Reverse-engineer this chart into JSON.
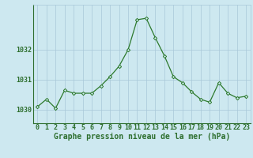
{
  "hours": [
    0,
    1,
    2,
    3,
    4,
    5,
    6,
    7,
    8,
    9,
    10,
    11,
    12,
    13,
    14,
    15,
    16,
    17,
    18,
    19,
    20,
    21,
    22,
    23
  ],
  "pressure": [
    1030.1,
    1030.35,
    1030.05,
    1030.65,
    1030.55,
    1030.55,
    1030.55,
    1030.8,
    1031.1,
    1031.45,
    1032.0,
    1033.0,
    1033.05,
    1032.4,
    1031.8,
    1031.1,
    1030.9,
    1030.6,
    1030.35,
    1030.25,
    1030.9,
    1030.55,
    1030.4,
    1030.45
  ],
  "line_color": "#2d7a2d",
  "marker": "D",
  "marker_size": 2.2,
  "bg_color": "#cde8f0",
  "grid_color": "#a8c8d8",
  "axis_color": "#2d6e2d",
  "xlabel": "Graphe pression niveau de la mer (hPa)",
  "xlabel_fontsize": 7,
  "tick_fontsize": 6,
  "ytick_labels": [
    "1030",
    "1031",
    "1032"
  ],
  "ytick_values": [
    1030,
    1031,
    1032
  ],
  "ylim": [
    1029.55,
    1033.5
  ],
  "xlim": [
    -0.5,
    23.5
  ]
}
